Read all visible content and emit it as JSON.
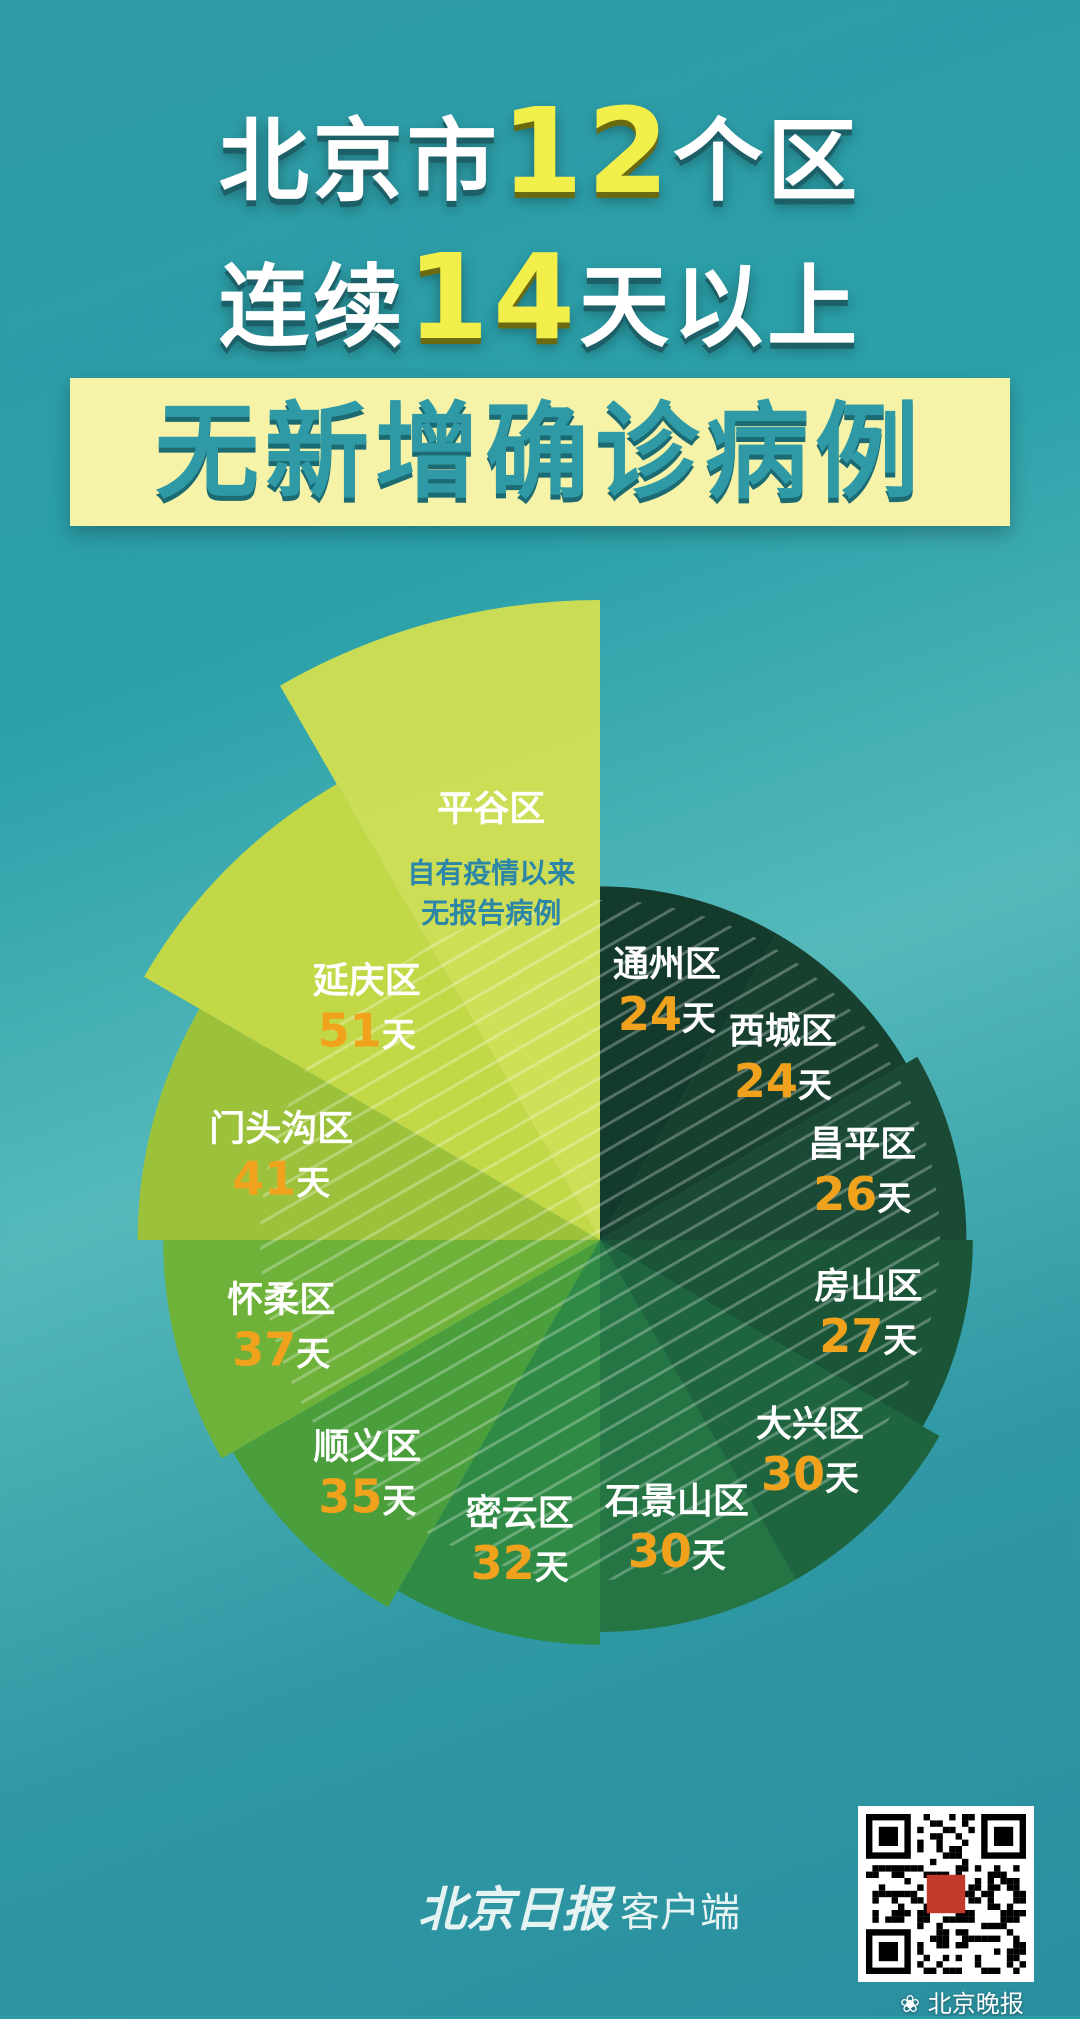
{
  "headline": {
    "line1_pre": "北京市",
    "line1_num": "12",
    "line1_post": "个区",
    "line2_pre": "连续",
    "line2_num": "14",
    "line2_post": "天以上",
    "banner": "无新增确诊病例"
  },
  "chart_data": {
    "type": "pie",
    "unit": "天",
    "slices": [
      {
        "name": "通州区",
        "value": 24,
        "color": "#143a2c"
      },
      {
        "name": "西城区",
        "value": 24,
        "color": "#17402f"
      },
      {
        "name": "昌平区",
        "value": 26,
        "color": "#1a4a35"
      },
      {
        "name": "房山区",
        "value": 27,
        "color": "#1b5538"
      },
      {
        "name": "大兴区",
        "value": 30,
        "color": "#1e643e"
      },
      {
        "name": "石景山区",
        "value": 30,
        "color": "#247444"
      },
      {
        "name": "密云区",
        "value": 32,
        "color": "#2e8a44"
      },
      {
        "name": "顺义区",
        "value": 35,
        "color": "#4a9e3c"
      },
      {
        "name": "怀柔区",
        "value": 37,
        "color": "#6fb23a"
      },
      {
        "name": "门头沟区",
        "value": 41,
        "color": "#9cc23c"
      },
      {
        "name": "延庆区",
        "value": 51,
        "color": "#c3d846"
      },
      {
        "name": "平谷区",
        "value": null,
        "note_line1": "自有疫情以来",
        "note_line2": "无报告病例",
        "color": "#e5e645"
      }
    ]
  },
  "footer": {
    "brand": "北京日报",
    "brand_suffix": "客户端",
    "watermark": "北京晚报"
  }
}
